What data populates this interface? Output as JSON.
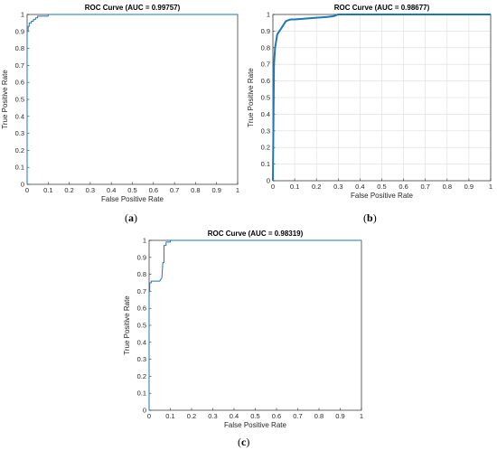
{
  "figure": {
    "captions": [
      "a",
      "b",
      "c"
    ]
  },
  "colors": {
    "curve": "#1f77b4",
    "grid": "#dcdcdc",
    "axis": "#262626"
  },
  "chart_data": [
    {
      "type": "line",
      "title": "ROC Curve (AUC = 0.99757)",
      "xlabel": "False Positive Rate",
      "ylabel": "True Positive Rate",
      "xlim": [
        0,
        1
      ],
      "ylim": [
        0,
        1
      ],
      "xticks": [
        "0",
        "0.1",
        "0.2",
        "0.3",
        "0.4",
        "0.5",
        "0.6",
        "0.7",
        "0.8",
        "0.9",
        "1"
      ],
      "yticks": [
        "0",
        "0.1",
        "0.2",
        "0.3",
        "0.4",
        "0.5",
        "0.6",
        "0.7",
        "0.8",
        "0.9",
        "1"
      ],
      "grid": false,
      "series": [
        {
          "x": [
            0,
            0,
            0.005,
            0.005,
            0.01,
            0.01,
            0.02,
            0.02,
            0.03,
            0.03,
            0.04,
            0.04,
            0.05,
            0.05,
            0.1,
            0.1,
            1
          ],
          "y": [
            0,
            0.9,
            0.9,
            0.93,
            0.93,
            0.95,
            0.95,
            0.96,
            0.96,
            0.97,
            0.97,
            0.98,
            0.98,
            0.99,
            0.99,
            1,
            1
          ]
        }
      ]
    },
    {
      "type": "line",
      "title": "ROC Curve (AUC = 0.98677)",
      "xlabel": "False Positive Rate",
      "ylabel": "True Positive Rate",
      "xlim": [
        0,
        1
      ],
      "ylim": [
        0,
        1
      ],
      "xticks": [
        "0",
        "0.1",
        "0.2",
        "0.3",
        "0.4",
        "0.5",
        "0.6",
        "0.7",
        "0.8",
        "0.9",
        "1"
      ],
      "yticks": [
        "0",
        "0.1",
        "0.2",
        "0.3",
        "0.4",
        "0.5",
        "0.6",
        "0.7",
        "0.8",
        "0.9",
        "1"
      ],
      "grid": true,
      "series": [
        {
          "x": [
            0,
            0.005,
            0.01,
            0.02,
            0.03,
            0.05,
            0.06,
            0.08,
            0.1,
            0.2,
            0.25,
            0.28,
            0.3,
            1
          ],
          "y": [
            0,
            0.7,
            0.8,
            0.88,
            0.9,
            0.94,
            0.96,
            0.97,
            0.97,
            0.98,
            0.985,
            0.99,
            1,
            1
          ]
        }
      ]
    },
    {
      "type": "line",
      "title": "ROC Curve (AUC = 0.98319)",
      "xlabel": "False Positive Rate",
      "ylabel": "True Positive Rate",
      "xlim": [
        0,
        1
      ],
      "ylim": [
        0,
        1
      ],
      "xticks": [
        "0",
        "0.1",
        "0.2",
        "0.3",
        "0.4",
        "0.5",
        "0.6",
        "0.7",
        "0.8",
        "0.9",
        "1"
      ],
      "yticks": [
        "0",
        "0.1",
        "0.2",
        "0.3",
        "0.4",
        "0.5",
        "0.6",
        "0.7",
        "0.8",
        "0.9",
        "1"
      ],
      "grid": false,
      "series": [
        {
          "x": [
            0,
            0,
            0.003,
            0.003,
            0.01,
            0.01,
            0.05,
            0.06,
            0.065,
            0.07,
            0.07,
            0.08,
            0.08,
            0.1,
            0.1,
            1
          ],
          "y": [
            0,
            0.7,
            0.7,
            0.75,
            0.75,
            0.76,
            0.76,
            0.78,
            0.87,
            0.87,
            0.97,
            0.97,
            0.99,
            0.99,
            1,
            1
          ]
        }
      ]
    }
  ]
}
